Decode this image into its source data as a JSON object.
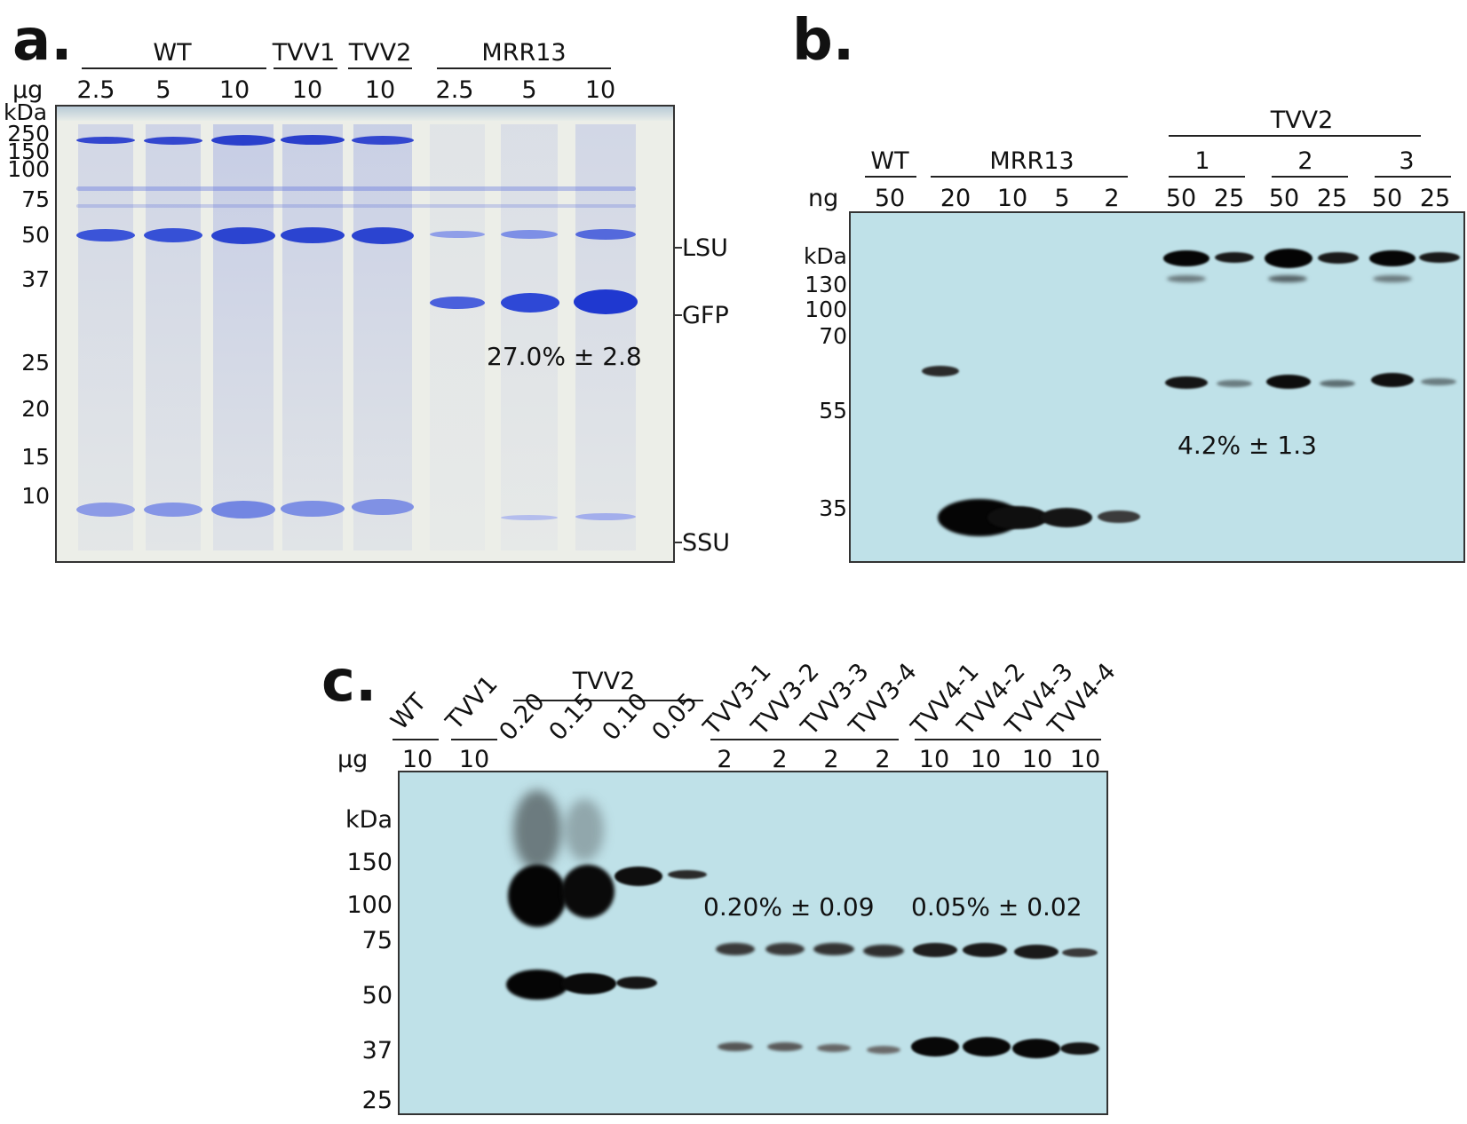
{
  "panel_a": {
    "letter": "a.",
    "groups": [
      "WT",
      "TVV1",
      "TVV2",
      "MRR13"
    ],
    "unit": "μg",
    "loads": [
      "2.5",
      "5",
      "10",
      "10",
      "10",
      "2.5",
      "5",
      "10"
    ],
    "kda_label": "kDa",
    "markers": [
      "250",
      "150",
      "100",
      "75",
      "50",
      "37",
      "25",
      "20",
      "15",
      "10"
    ],
    "band_labels": [
      "LSU",
      "GFP",
      "SSU"
    ],
    "percent": "27.0% ± 2.8"
  },
  "panel_b": {
    "letter": "b.",
    "top_group": "TVV2",
    "groups": [
      "WT",
      "MRR13",
      "1",
      "2",
      "3"
    ],
    "unit": "ng",
    "loads": [
      "50",
      "20",
      "10",
      "5",
      "2",
      "50",
      "25",
      "50",
      "25",
      "50",
      "25"
    ],
    "kda_label": "kDa",
    "markers": [
      "130",
      "100",
      "70",
      "55",
      "35"
    ],
    "percent": "4.2% ± 1.3"
  },
  "panel_c": {
    "letter": "c.",
    "lanes": [
      "WT",
      "TVV1",
      "TVV3-1",
      "TVV3-2",
      "TVV3-3",
      "TVV3-4",
      "TVV4-1",
      "TVV4-2",
      "TVV4-3",
      "TVV4-4"
    ],
    "tvv2_label": "TVV2",
    "tvv2_loads": [
      "0.20",
      "0.15",
      "0.10",
      "0.05"
    ],
    "unit": "μg",
    "loads": [
      "10",
      "10",
      "2",
      "2",
      "2",
      "2",
      "10",
      "10",
      "10",
      "10"
    ],
    "kda_label": "kDa",
    "markers": [
      "150",
      "100",
      "75",
      "50",
      "37",
      "25"
    ],
    "percents": [
      "0.20% ± 0.09",
      "0.05% ± 0.02"
    ]
  },
  "colors": {
    "coomassie": "#3d55d8",
    "gel_a_bg": "#eceee8",
    "blot_bg": "#bfe1e8",
    "band_dark": "#0a0a0a"
  }
}
